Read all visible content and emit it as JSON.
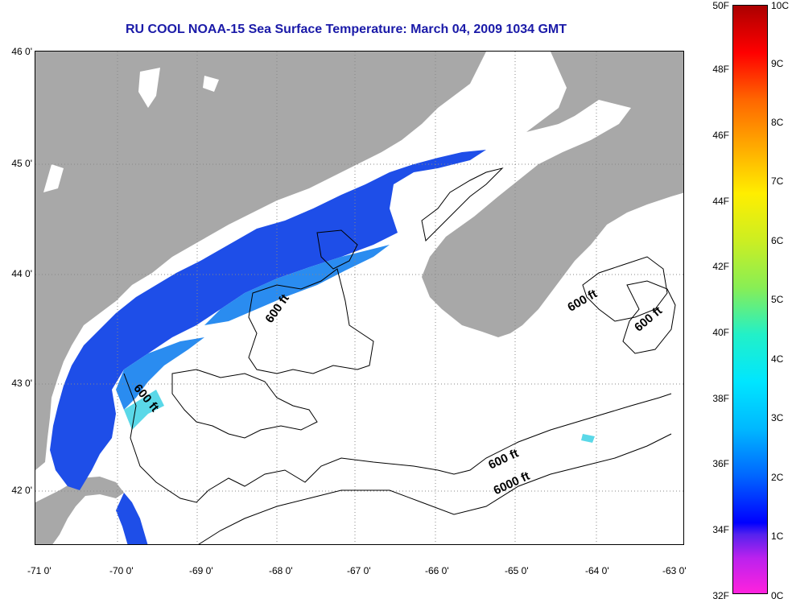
{
  "title": "RU COOL  NOAA-15  Sea Surface Temperature:  March 04, 2009 1034 GMT",
  "lat_labels": [
    "46 0'",
    "45 0'",
    "44 0'",
    "43 0'",
    "42 0'"
  ],
  "lon_labels": [
    "-71 0'",
    "-70 0'",
    "-69 0'",
    "-68 0'",
    "-67 0'",
    "-66 0'",
    "-65 0'",
    "-64 0'",
    "-63 0'"
  ],
  "colorbar": {
    "f_labels": [
      "50F",
      "48F",
      "46F",
      "44F",
      "42F",
      "40F",
      "38F",
      "36F",
      "34F",
      "32F"
    ],
    "c_labels": [
      "10C",
      "9C",
      "8C",
      "7C",
      "6C",
      "5C",
      "4C",
      "3C",
      "2C",
      "1C",
      "0C"
    ],
    "min_c": 0,
    "max_c": 10
  },
  "contour_labels": [
    "600 ft",
    "600 ft",
    "600 ft",
    "600 ft",
    "600 ft",
    "6000 ft"
  ],
  "colors": {
    "land": "#a8a8a8",
    "cloud_mask": "#ffffff",
    "sst_cold": "#1e4ee8",
    "sst_mid": "#2a8cf0",
    "sst_warm": "#5ad8e8",
    "title": "#1a1aa8"
  }
}
